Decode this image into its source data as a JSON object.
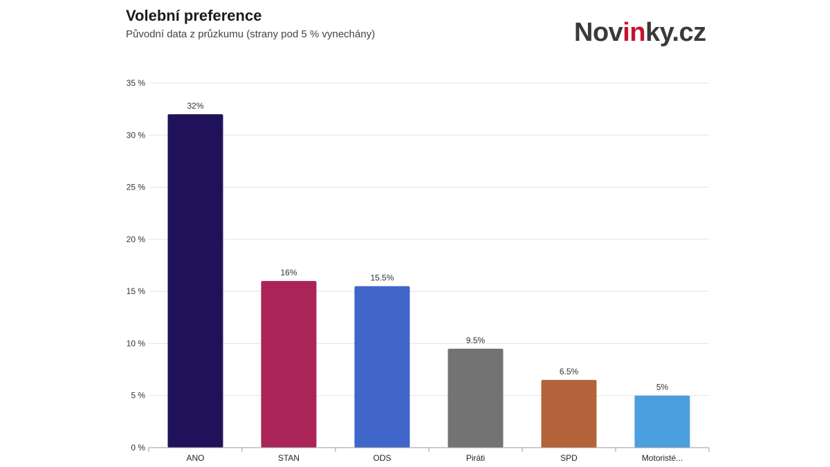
{
  "header": {
    "title": "Volební preference",
    "subtitle": "Původní data z průzkumu (strany pod 5 % vynechány)"
  },
  "logo": {
    "prefix": "Nov",
    "highlight": "in",
    "suffix": "ky.cz",
    "highlight_color": "#c8102e",
    "text_color": "#3a3a3a"
  },
  "chart_data": {
    "type": "bar",
    "title": "Volební preference",
    "subtitle": "Původní data z průzkumu (strany pod 5 % vynechány)",
    "xlabel": "",
    "ylabel": "",
    "ylim": [
      0,
      35
    ],
    "yticks": [
      0,
      5,
      10,
      15,
      20,
      25,
      30,
      35
    ],
    "ytick_labels": [
      "0 %",
      "5 %",
      "10 %",
      "15 %",
      "20 %",
      "25 %",
      "30 %",
      "35 %"
    ],
    "grid": true,
    "categories": [
      "ANO",
      "STAN",
      "ODS",
      "Piráti",
      "SPD",
      "Motoristé..."
    ],
    "values": [
      32,
      16,
      15.5,
      9.5,
      6.5,
      5
    ],
    "data_labels": [
      "32%",
      "16%",
      "15.5%",
      "9.5%",
      "6.5%",
      "5%"
    ],
    "colors": [
      "#20125a",
      "#aa2458",
      "#4066c9",
      "#737373",
      "#b3643a",
      "#4c9fdf"
    ]
  }
}
